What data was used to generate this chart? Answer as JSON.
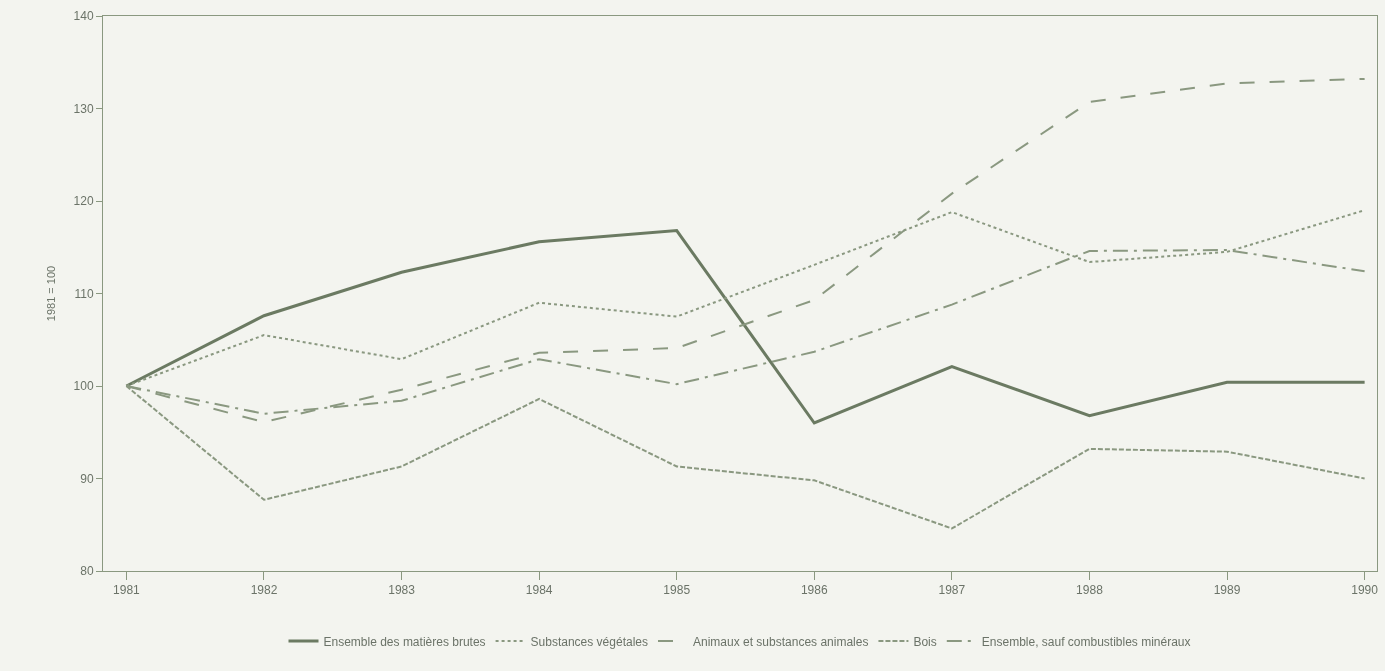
{
  "chart_data": {
    "type": "line",
    "ylabel": "1981 = 100",
    "x": [
      1981,
      1982,
      1983,
      1984,
      1985,
      1986,
      1987,
      1988,
      1989,
      1990
    ],
    "series": [
      {
        "name": "Ensemble des matières brutes",
        "color": "#6b7a62",
        "line_style": "solid",
        "values": [
          100,
          107.6,
          112.3,
          115.6,
          116.8,
          96.0,
          102.1,
          96.8,
          100.4,
          100.4
        ]
      },
      {
        "name": "Substances végétales",
        "color": "#8a9880",
        "line_style": "dotted",
        "values": [
          100,
          105.5,
          102.9,
          109.0,
          107.5,
          113.1,
          118.8,
          113.4,
          114.5,
          119.0
        ]
      },
      {
        "name": "Animaux et substances animales",
        "color": "#8a9880",
        "line_style": "longdash",
        "values": [
          100,
          96.1,
          99.6,
          103.6,
          104.1,
          109.3,
          120.8,
          130.7,
          132.7,
          133.2
        ]
      },
      {
        "name": "Bois",
        "color": "#8a9880",
        "line_style": "dashed",
        "values": [
          100,
          87.7,
          91.3,
          98.6,
          91.3,
          89.8,
          84.6,
          93.2,
          92.9,
          90.0
        ]
      },
      {
        "name": "Ensemble, sauf combustibles minéraux",
        "color": "#8a9880",
        "line_style": "dashdot",
        "values": [
          100,
          97.0,
          98.4,
          102.9,
          100.2,
          103.7,
          108.8,
          114.6,
          114.7,
          112.4
        ]
      }
    ],
    "xlim": [
      1980.83,
      1990.09
    ],
    "xticks": [
      1981,
      1982,
      1983,
      1984,
      1985,
      1986,
      1987,
      1988,
      1989,
      1990
    ],
    "ylim": [
      80,
      140
    ],
    "yticks": [
      80,
      90,
      100,
      110,
      120,
      130,
      140
    ],
    "grid": false,
    "legend": "bottom",
    "marker": "none"
  }
}
